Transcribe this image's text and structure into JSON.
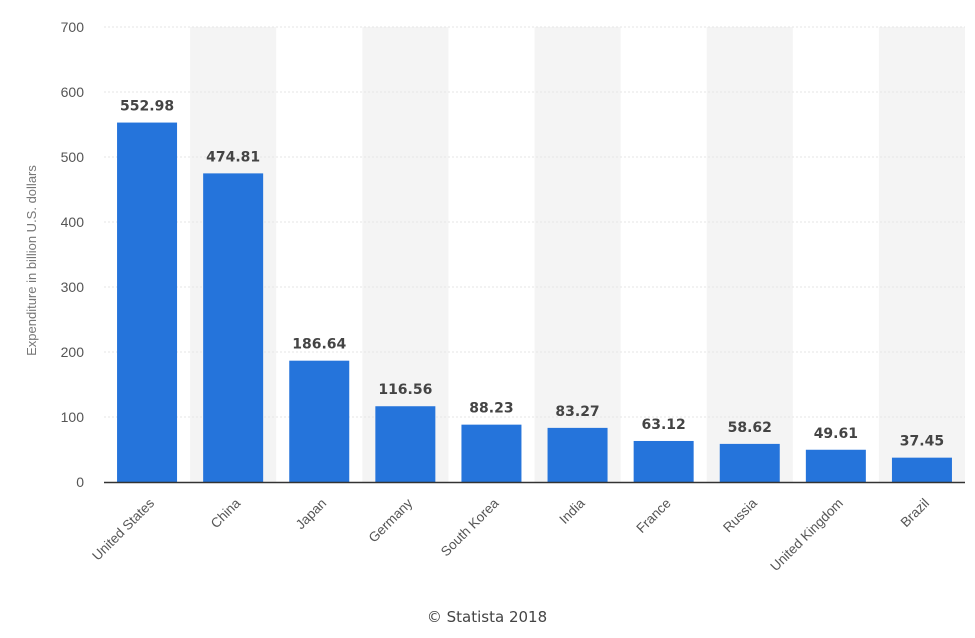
{
  "chart_data": {
    "type": "bar",
    "categories": [
      "United States",
      "China",
      "Japan",
      "Germany",
      "South Korea",
      "India",
      "France",
      "Russia",
      "United Kingdom",
      "Brazil"
    ],
    "values": [
      552.98,
      474.81,
      186.64,
      116.56,
      88.23,
      83.27,
      63.12,
      58.62,
      49.61,
      37.45
    ],
    "value_labels": [
      "552.98",
      "474.81",
      "186.64",
      "116.56",
      "88.23",
      "83.27",
      "63.12",
      "58.62",
      "49.61",
      "37.45"
    ],
    "title": "",
    "xlabel": "",
    "ylabel": "Expenditure in billion U.S. dollars",
    "ylim": [
      0,
      700
    ],
    "yticks": [
      0,
      100,
      200,
      300,
      400,
      500,
      600,
      700
    ],
    "grid": true,
    "legend": "none",
    "bar_color": "#2574db",
    "band_color": "#f4f4f4",
    "grid_color": "#e6e6e6",
    "axis_color": "#333333"
  },
  "credit": "© Statista 2018"
}
